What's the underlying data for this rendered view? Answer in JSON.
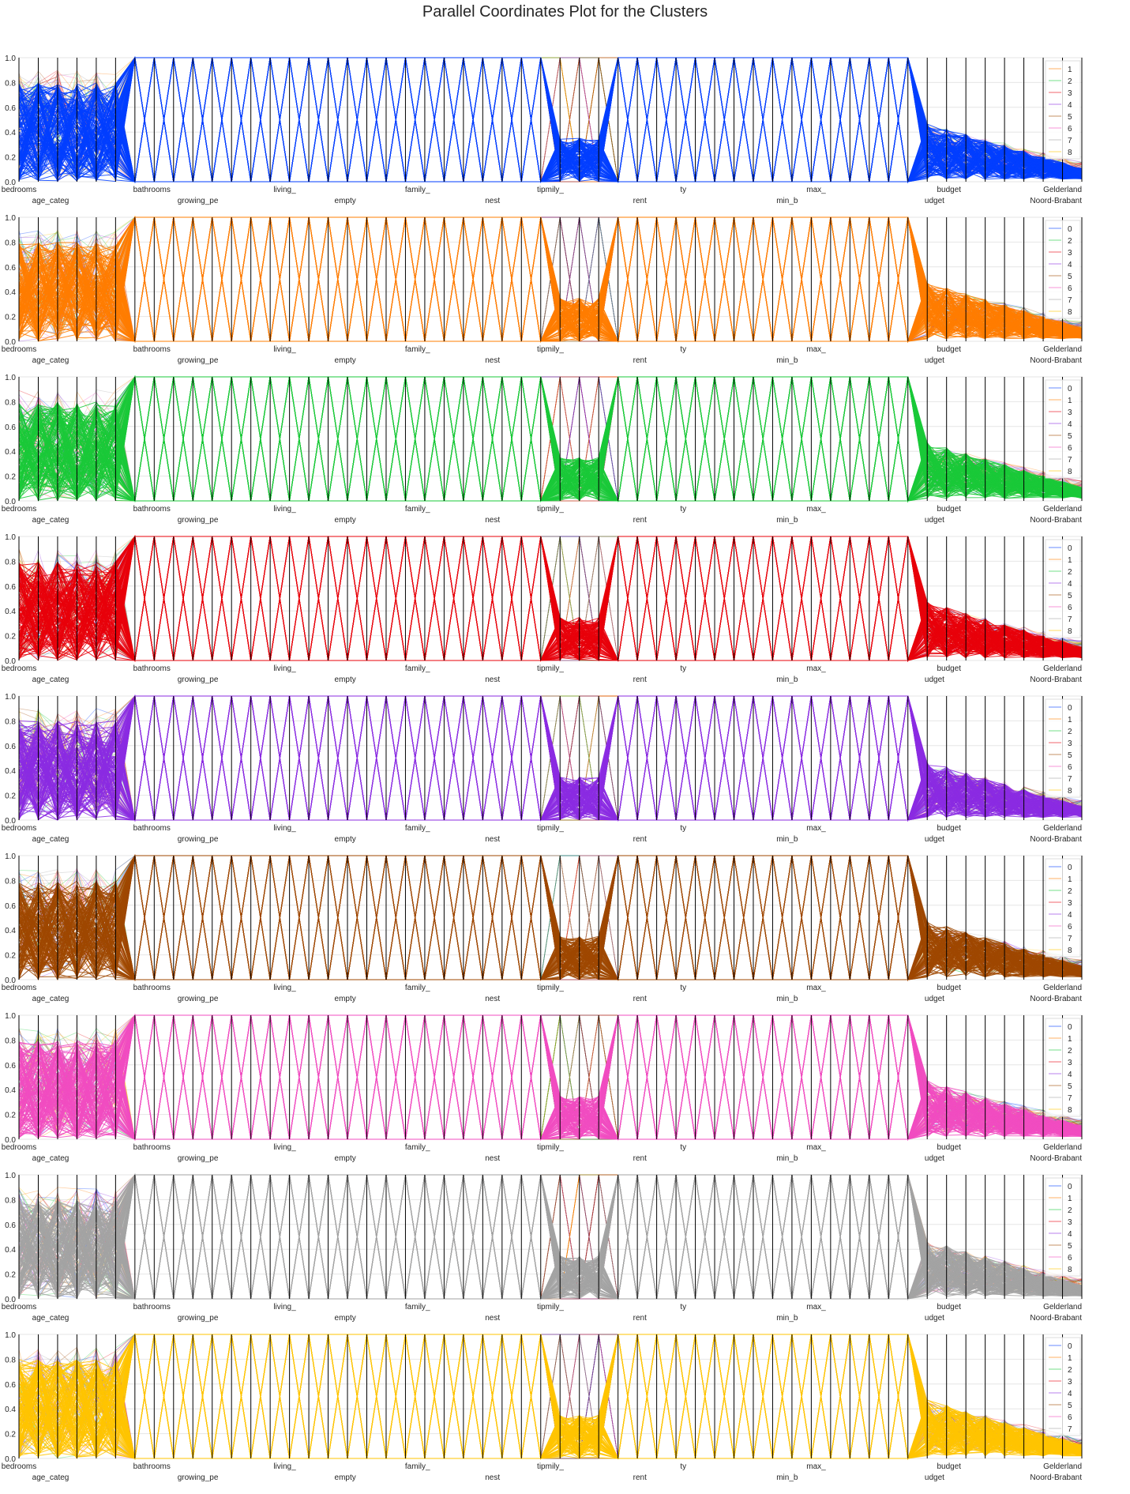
{
  "title": "Parallel Coordinates Plot for the Clusters",
  "chart_data": {
    "type": "parallel_coordinates",
    "ylim": [
      0,
      1
    ],
    "yticks": [
      "0.0",
      "0.2",
      "0.4",
      "0.6",
      "0.8",
      "1.0"
    ],
    "grid": true,
    "legend_placement": "top-right inside",
    "axis_labels_row1": [
      "bedrooms",
      "bathrooms",
      "living_",
      "family_",
      "tipmily_",
      "ty",
      "max_",
      "budget",
      "Gelderland"
    ],
    "axis_labels_row2": [
      "age_categ",
      "growing_pe",
      "empty",
      "nest",
      "rent",
      "min_b",
      "udget",
      "Noord-Brabant"
    ],
    "panels": [
      {
        "cluster": 0,
        "color": "#023eff",
        "legend": [
          "1",
          "2",
          "3",
          "4",
          "5",
          "6",
          "7",
          "8"
        ]
      },
      {
        "cluster": 1,
        "color": "#ff7c00",
        "legend": [
          "0",
          "2",
          "3",
          "4",
          "5",
          "6",
          "7",
          "8"
        ]
      },
      {
        "cluster": 2,
        "color": "#1ac938",
        "legend": [
          "0",
          "1",
          "3",
          "4",
          "5",
          "6",
          "7",
          "8"
        ]
      },
      {
        "cluster": 3,
        "color": "#e8000b",
        "legend": [
          "0",
          "1",
          "2",
          "4",
          "5",
          "6",
          "7",
          "8"
        ]
      },
      {
        "cluster": 4,
        "color": "#8b2be2",
        "legend": [
          "0",
          "1",
          "2",
          "3",
          "5",
          "6",
          "7",
          "8"
        ]
      },
      {
        "cluster": 5,
        "color": "#9f4800",
        "legend": [
          "0",
          "1",
          "2",
          "3",
          "4",
          "6",
          "7",
          "8"
        ]
      },
      {
        "cluster": 6,
        "color": "#f14cc1",
        "legend": [
          "0",
          "1",
          "2",
          "3",
          "4",
          "5",
          "7",
          "8"
        ]
      },
      {
        "cluster": 7,
        "color": "#a3a3a3",
        "legend": [
          "0",
          "1",
          "2",
          "3",
          "4",
          "5",
          "6",
          "8"
        ]
      },
      {
        "cluster": 8,
        "color": "#ffc400",
        "legend": [
          "0",
          "1",
          "2",
          "3",
          "4",
          "5",
          "6",
          "7"
        ]
      }
    ],
    "palette": [
      "#023eff",
      "#ff7c00",
      "#1ac938",
      "#e8000b",
      "#8b2be2",
      "#9f4800",
      "#f14cc1",
      "#a3a3a3",
      "#ffc400"
    ]
  }
}
